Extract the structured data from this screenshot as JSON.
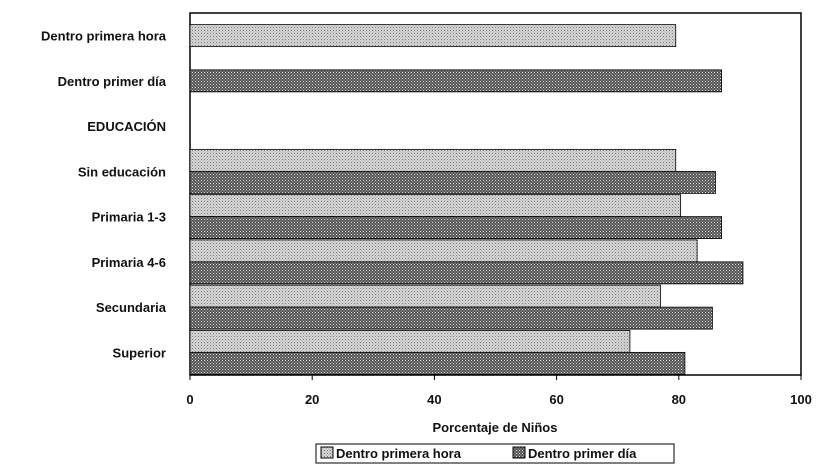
{
  "chart_data": {
    "type": "bar",
    "orientation": "horizontal",
    "categories": [
      "Dentro primera hora",
      "Dentro primer día",
      "EDUCACIÓN",
      "Sin educación",
      "Primaria 1-3",
      "Primaria 4-6",
      "Secundaria",
      "Superior"
    ],
    "series": [
      {
        "name": "Dentro primera hora",
        "color": "#bdbdbd",
        "pattern": "light-dots",
        "values": [
          79.5,
          null,
          null,
          79.5,
          80.3,
          83.0,
          77.0,
          72.0
        ]
      },
      {
        "name": "Dentro primer día",
        "color": "#5a5a5a",
        "pattern": "dark-crosshatch",
        "values": [
          null,
          87.0,
          null,
          86.0,
          87.0,
          90.5,
          85.5,
          81.0
        ]
      }
    ],
    "xlabel": "Porcentaje de Niños",
    "xlim": [
      0,
      100
    ],
    "xticks": [
      0,
      20,
      40,
      60,
      80,
      100
    ],
    "grid": false,
    "legend_position": "bottom"
  }
}
